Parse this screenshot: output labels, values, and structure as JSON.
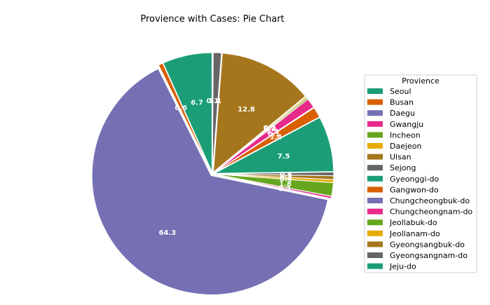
{
  "chart_data": {
    "type": "pie",
    "title": "Provience with Cases: Pie Chart",
    "legend_title": "Provience",
    "legend_position": "right",
    "slices": [
      {
        "label": "Seoul",
        "value": 6.7,
        "color": "#1b9e77",
        "display": "6.7"
      },
      {
        "label": "Busan",
        "value": 0.6,
        "color": "#d95f02",
        "display": "0.6"
      },
      {
        "label": "Daegu",
        "value": 64.3,
        "color": "#7570b3",
        "display": "64.3"
      },
      {
        "label": "Gwangju",
        "value": 0.3,
        "color": "#e7298a",
        "display": "0.3"
      },
      {
        "label": "Incheon",
        "value": 1.8,
        "color": "#66a61e",
        "display": "1.8"
      },
      {
        "label": "Daejeon",
        "value": 0.4,
        "color": "#e6ab02",
        "display": "0.4"
      },
      {
        "label": "Ulsan",
        "value": 0.5,
        "color": "#a6761d",
        "display": "0.5"
      },
      {
        "label": "Sejong",
        "value": 0.5,
        "color": "#666666",
        "display": "0.5"
      },
      {
        "label": "Gyeonggi-do",
        "value": 7.5,
        "color": "#1b9e77",
        "display": "7.5"
      },
      {
        "label": "Gangwon-do",
        "value": 1.4,
        "color": "#d95f02",
        "display": "1.4"
      },
      {
        "label": "Chungcheongbuk-do",
        "value": 0.1,
        "color": "#7570b3",
        "display": "0.1"
      },
      {
        "label": "Chungcheongnam-do",
        "value": 1.3,
        "color": "#e7298a",
        "display": "1.3"
      },
      {
        "label": "Jeollabuk-do",
        "value": 0.2,
        "color": "#66a61e",
        "display": "0.2"
      },
      {
        "label": "Jeollanam-do",
        "value": 0.2,
        "color": "#e6ab02",
        "display": "0.2"
      },
      {
        "label": "Gyeongsangbuk-do",
        "value": 12.8,
        "color": "#a6761d",
        "display": "12.8"
      },
      {
        "label": "Gyeongsangnam-do",
        "value": 1.1,
        "color": "#666666",
        "display": "1.1"
      },
      {
        "label": "Jeju-do",
        "value": 0.1,
        "color": "#1b9e77",
        "display": "0.1"
      }
    ]
  }
}
